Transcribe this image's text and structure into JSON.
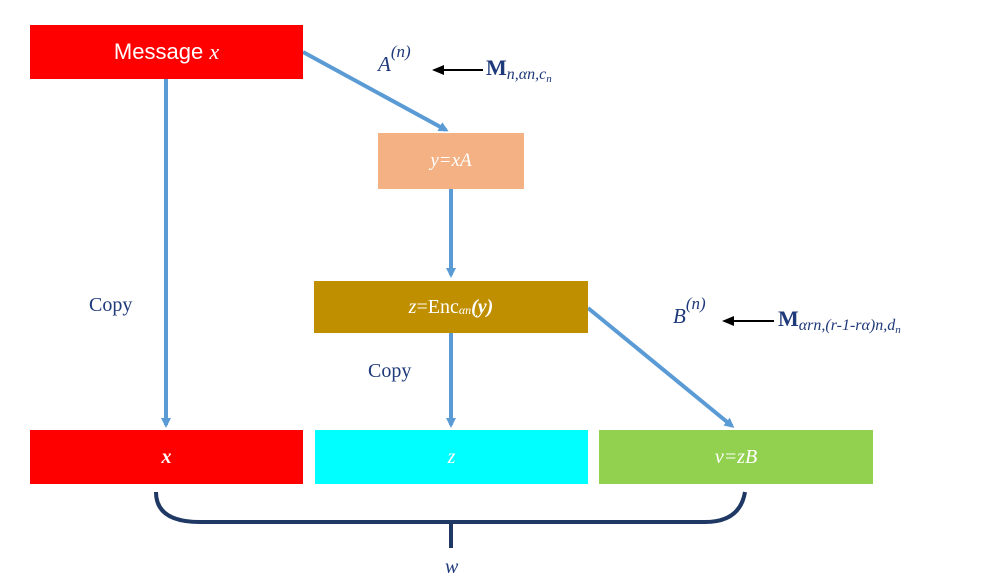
{
  "nodes": {
    "message": {
      "prefix": "Message ",
      "var": "x",
      "color": "#ff0000"
    },
    "y_eq": {
      "text": "y=xA",
      "color": "#f4b183"
    },
    "z_eq": {
      "lhs": "z",
      "eq": "=Enc",
      "sub": "αn",
      "arg": "(y)",
      "color": "#bf8f00"
    },
    "x_out": {
      "text": "x",
      "color": "#ff0000"
    },
    "z_out": {
      "text": "z",
      "color": "#00ffff"
    },
    "v_out": {
      "text": "v=zB",
      "color": "#92d050"
    }
  },
  "labels": {
    "copy_left": "Copy",
    "copy_mid": "Copy",
    "w": "w",
    "A_var": "A",
    "A_sup": "(n)",
    "M1_bold": "M",
    "M1_sub": "n,αn,c",
    "M1_subsub": "n",
    "B_var": "B",
    "B_sup": "(n)",
    "M2_bold": "M",
    "M2_sub": "αrn,(r-1-rα)n,d",
    "M2_subsub": "n"
  },
  "colors": {
    "arrow": "#5b9bd5",
    "brace": "#1f3864",
    "text": "#1f3a7a"
  }
}
